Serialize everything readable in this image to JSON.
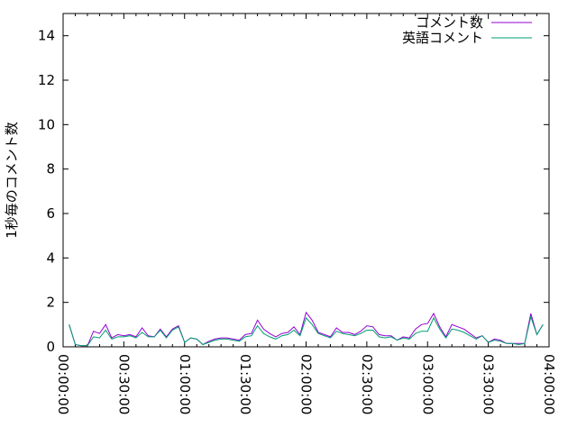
{
  "chart_data": {
    "type": "line",
    "title": "",
    "xlabel": "",
    "ylabel": "1秒毎のコメント数",
    "xlim": [
      "00:00:00",
      "04:00:00"
    ],
    "ylim": [
      0,
      15
    ],
    "x_ticks": [
      "00:00:00",
      "00:30:00",
      "01:00:00",
      "01:30:00",
      "02:00:00",
      "02:30:00",
      "03:00:00",
      "03:30:00",
      "04:00:00"
    ],
    "y_ticks": [
      0,
      2,
      4,
      6,
      8,
      10,
      12,
      14
    ],
    "grid": false,
    "legend_position": "top-right",
    "series": [
      {
        "name": "コメント数",
        "color": "#9400d3",
        "points": [
          [
            "00:03:00",
            1.0
          ],
          [
            "00:06:00",
            0.1
          ],
          [
            "00:09:00",
            0.05
          ],
          [
            "00:12:00",
            0.05
          ],
          [
            "00:15:00",
            0.7
          ],
          [
            "00:18:00",
            0.6
          ],
          [
            "00:21:00",
            1.0
          ],
          [
            "00:24:00",
            0.4
          ],
          [
            "00:27:00",
            0.55
          ],
          [
            "00:30:00",
            0.5
          ],
          [
            "00:33:00",
            0.55
          ],
          [
            "00:36:00",
            0.45
          ],
          [
            "00:39:00",
            0.85
          ],
          [
            "00:42:00",
            0.5
          ],
          [
            "00:45:00",
            0.45
          ],
          [
            "00:48:00",
            0.8
          ],
          [
            "00:51:00",
            0.45
          ],
          [
            "00:54:00",
            0.8
          ],
          [
            "00:57:00",
            0.95
          ],
          [
            "01:00:00",
            0.2
          ],
          [
            "01:03:00",
            0.4
          ],
          [
            "01:06:00",
            0.35
          ],
          [
            "01:09:00",
            0.1
          ],
          [
            "01:12:00",
            0.25
          ],
          [
            "01:15:00",
            0.35
          ],
          [
            "01:18:00",
            0.4
          ],
          [
            "01:21:00",
            0.4
          ],
          [
            "01:24:00",
            0.35
          ],
          [
            "01:27:00",
            0.3
          ],
          [
            "01:30:00",
            0.55
          ],
          [
            "01:33:00",
            0.6
          ],
          [
            "01:36:00",
            1.2
          ],
          [
            "01:39:00",
            0.8
          ],
          [
            "01:42:00",
            0.6
          ],
          [
            "01:45:00",
            0.45
          ],
          [
            "01:48:00",
            0.6
          ],
          [
            "01:51:00",
            0.65
          ],
          [
            "01:54:00",
            0.9
          ],
          [
            "01:57:00",
            0.55
          ],
          [
            "02:00:00",
            1.55
          ],
          [
            "02:03:00",
            1.2
          ],
          [
            "02:06:00",
            0.65
          ],
          [
            "02:09:00",
            0.55
          ],
          [
            "02:12:00",
            0.45
          ],
          [
            "02:15:00",
            0.85
          ],
          [
            "02:18:00",
            0.65
          ],
          [
            "02:21:00",
            0.65
          ],
          [
            "02:24:00",
            0.55
          ],
          [
            "02:27:00",
            0.7
          ],
          [
            "02:30:00",
            0.95
          ],
          [
            "02:33:00",
            0.9
          ],
          [
            "02:36:00",
            0.55
          ],
          [
            "02:39:00",
            0.5
          ],
          [
            "02:42:00",
            0.5
          ],
          [
            "02:45:00",
            0.3
          ],
          [
            "02:48:00",
            0.45
          ],
          [
            "02:51:00",
            0.4
          ],
          [
            "02:54:00",
            0.8
          ],
          [
            "02:57:00",
            1.0
          ],
          [
            "03:00:00",
            1.05
          ],
          [
            "03:03:00",
            1.5
          ],
          [
            "03:06:00",
            0.9
          ],
          [
            "03:09:00",
            0.45
          ],
          [
            "03:12:00",
            1.0
          ],
          [
            "03:15:00",
            0.9
          ],
          [
            "03:18:00",
            0.8
          ],
          [
            "03:21:00",
            0.6
          ],
          [
            "03:24:00",
            0.4
          ],
          [
            "03:27:00",
            0.5
          ],
          [
            "03:30:00",
            0.2
          ],
          [
            "03:33:00",
            0.35
          ],
          [
            "03:36:00",
            0.3
          ],
          [
            "03:39:00",
            0.15
          ],
          [
            "03:42:00",
            0.15
          ],
          [
            "03:45:00",
            0.15
          ],
          [
            "03:48:00",
            0.15
          ],
          [
            "03:51:00",
            1.5
          ],
          [
            "03:54:00",
            0.55
          ],
          [
            "03:57:00",
            1.0
          ]
        ]
      },
      {
        "name": "英語コメント",
        "color": "#009e73",
        "points": [
          [
            "00:03:00",
            1.0
          ],
          [
            "00:06:00",
            0.1
          ],
          [
            "00:09:00",
            0.05
          ],
          [
            "00:12:00",
            0.05
          ],
          [
            "00:15:00",
            0.45
          ],
          [
            "00:18:00",
            0.4
          ],
          [
            "00:21:00",
            0.75
          ],
          [
            "00:24:00",
            0.35
          ],
          [
            "00:27:00",
            0.45
          ],
          [
            "00:30:00",
            0.45
          ],
          [
            "00:33:00",
            0.5
          ],
          [
            "00:36:00",
            0.4
          ],
          [
            "00:39:00",
            0.65
          ],
          [
            "00:42:00",
            0.45
          ],
          [
            "00:45:00",
            0.45
          ],
          [
            "00:48:00",
            0.75
          ],
          [
            "00:51:00",
            0.4
          ],
          [
            "00:54:00",
            0.75
          ],
          [
            "00:57:00",
            0.9
          ],
          [
            "01:00:00",
            0.2
          ],
          [
            "01:03:00",
            0.4
          ],
          [
            "01:06:00",
            0.35
          ],
          [
            "01:09:00",
            0.1
          ],
          [
            "01:12:00",
            0.2
          ],
          [
            "01:15:00",
            0.3
          ],
          [
            "01:18:00",
            0.35
          ],
          [
            "01:21:00",
            0.35
          ],
          [
            "01:24:00",
            0.3
          ],
          [
            "01:27:00",
            0.25
          ],
          [
            "01:30:00",
            0.45
          ],
          [
            "01:33:00",
            0.5
          ],
          [
            "01:36:00",
            0.95
          ],
          [
            "01:39:00",
            0.6
          ],
          [
            "01:42:00",
            0.45
          ],
          [
            "01:45:00",
            0.35
          ],
          [
            "01:48:00",
            0.5
          ],
          [
            "01:51:00",
            0.55
          ],
          [
            "01:54:00",
            0.75
          ],
          [
            "01:57:00",
            0.5
          ],
          [
            "02:00:00",
            1.3
          ],
          [
            "02:03:00",
            1.0
          ],
          [
            "02:06:00",
            0.6
          ],
          [
            "02:09:00",
            0.5
          ],
          [
            "02:12:00",
            0.4
          ],
          [
            "02:15:00",
            0.7
          ],
          [
            "02:18:00",
            0.6
          ],
          [
            "02:21:00",
            0.55
          ],
          [
            "02:24:00",
            0.5
          ],
          [
            "02:27:00",
            0.6
          ],
          [
            "02:30:00",
            0.75
          ],
          [
            "02:33:00",
            0.75
          ],
          [
            "02:36:00",
            0.45
          ],
          [
            "02:39:00",
            0.4
          ],
          [
            "02:42:00",
            0.45
          ],
          [
            "02:45:00",
            0.3
          ],
          [
            "02:48:00",
            0.4
          ],
          [
            "02:51:00",
            0.35
          ],
          [
            "02:54:00",
            0.6
          ],
          [
            "02:57:00",
            0.7
          ],
          [
            "03:00:00",
            0.7
          ],
          [
            "03:03:00",
            1.3
          ],
          [
            "03:06:00",
            0.8
          ],
          [
            "03:09:00",
            0.4
          ],
          [
            "03:12:00",
            0.8
          ],
          [
            "03:15:00",
            0.75
          ],
          [
            "03:18:00",
            0.65
          ],
          [
            "03:21:00",
            0.5
          ],
          [
            "03:24:00",
            0.35
          ],
          [
            "03:27:00",
            0.5
          ],
          [
            "03:30:00",
            0.2
          ],
          [
            "03:33:00",
            0.3
          ],
          [
            "03:36:00",
            0.25
          ],
          [
            "03:39:00",
            0.15
          ],
          [
            "03:42:00",
            0.15
          ],
          [
            "03:45:00",
            0.1
          ],
          [
            "03:48:00",
            0.15
          ],
          [
            "03:51:00",
            1.35
          ],
          [
            "03:54:00",
            0.55
          ],
          [
            "03:57:00",
            1.0
          ]
        ]
      }
    ]
  }
}
